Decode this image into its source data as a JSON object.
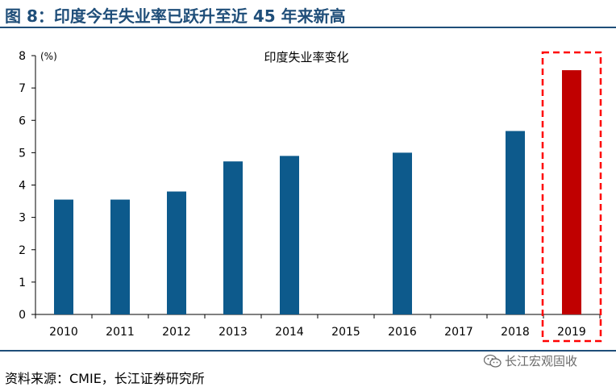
{
  "figure_title": "图 8：印度今年失业率已跃升至近 45 年来新高",
  "source_text": "资料来源：CMIE，长江证券研究所",
  "watermark": {
    "icon": "wechat-icon",
    "text": "长江宏观固收"
  },
  "colors": {
    "title": "#1f4e79",
    "bar": "#0d5a8c",
    "highlight_bar": "#c00000",
    "highlight_box": "#ff0000"
  },
  "chart_data": {
    "type": "bar",
    "title": "印度失业率变化",
    "unit_label": "(%)",
    "categories": [
      "2010",
      "2011",
      "2012",
      "2013",
      "2014",
      "2015",
      "2016",
      "2017",
      "2018",
      "2019"
    ],
    "values": [
      3.55,
      3.55,
      3.8,
      4.73,
      4.9,
      null,
      5.0,
      null,
      5.67,
      7.55
    ],
    "highlight_category": "2019",
    "ylim": [
      0,
      8
    ],
    "yticks": [
      "0",
      "1",
      "2",
      "3",
      "4",
      "5",
      "6",
      "7",
      "8"
    ],
    "grid": false,
    "legend": "none"
  }
}
